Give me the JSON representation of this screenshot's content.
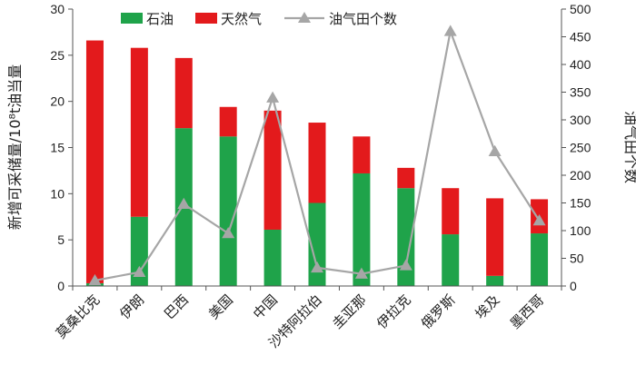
{
  "chart_data": {
    "type": "bar",
    "stacked": true,
    "categories": [
      "莫桑比克",
      "伊朗",
      "巴西",
      "美国",
      "中国",
      "沙特阿拉伯",
      "圭亚那",
      "伊拉克",
      "俄罗斯",
      "埃及",
      "墨西哥"
    ],
    "series": [
      {
        "name": "石油",
        "color": "#1fa34a",
        "axis": "left",
        "values": [
          0.3,
          7.5,
          17.1,
          16.2,
          6.1,
          9.0,
          12.2,
          10.6,
          5.6,
          1.1,
          5.7
        ]
      },
      {
        "name": "天然气",
        "color": "#e31a1c",
        "axis": "left",
        "values": [
          26.3,
          18.3,
          7.6,
          3.2,
          12.9,
          8.7,
          4.0,
          2.2,
          5.0,
          8.4,
          3.7
        ]
      },
      {
        "name": "油气田个数",
        "color": "#a6a6a6",
        "axis": "right",
        "type": "line",
        "values": [
          10,
          25,
          148,
          95,
          340,
          33,
          22,
          37,
          460,
          243,
          118
        ]
      }
    ],
    "ylabel": "新增可采储量/10⁸t油当量",
    "y2label": "油气田个数",
    "ylim": [
      0,
      30
    ],
    "y2lim": [
      0,
      500
    ],
    "yticks": [
      "0",
      "5",
      "10",
      "15",
      "20",
      "25",
      "30"
    ],
    "y2ticks": [
      "0",
      "50",
      "100",
      "150",
      "200",
      "250",
      "300",
      "350",
      "400",
      "450",
      "500"
    ],
    "legend": "top",
    "grid": false
  }
}
